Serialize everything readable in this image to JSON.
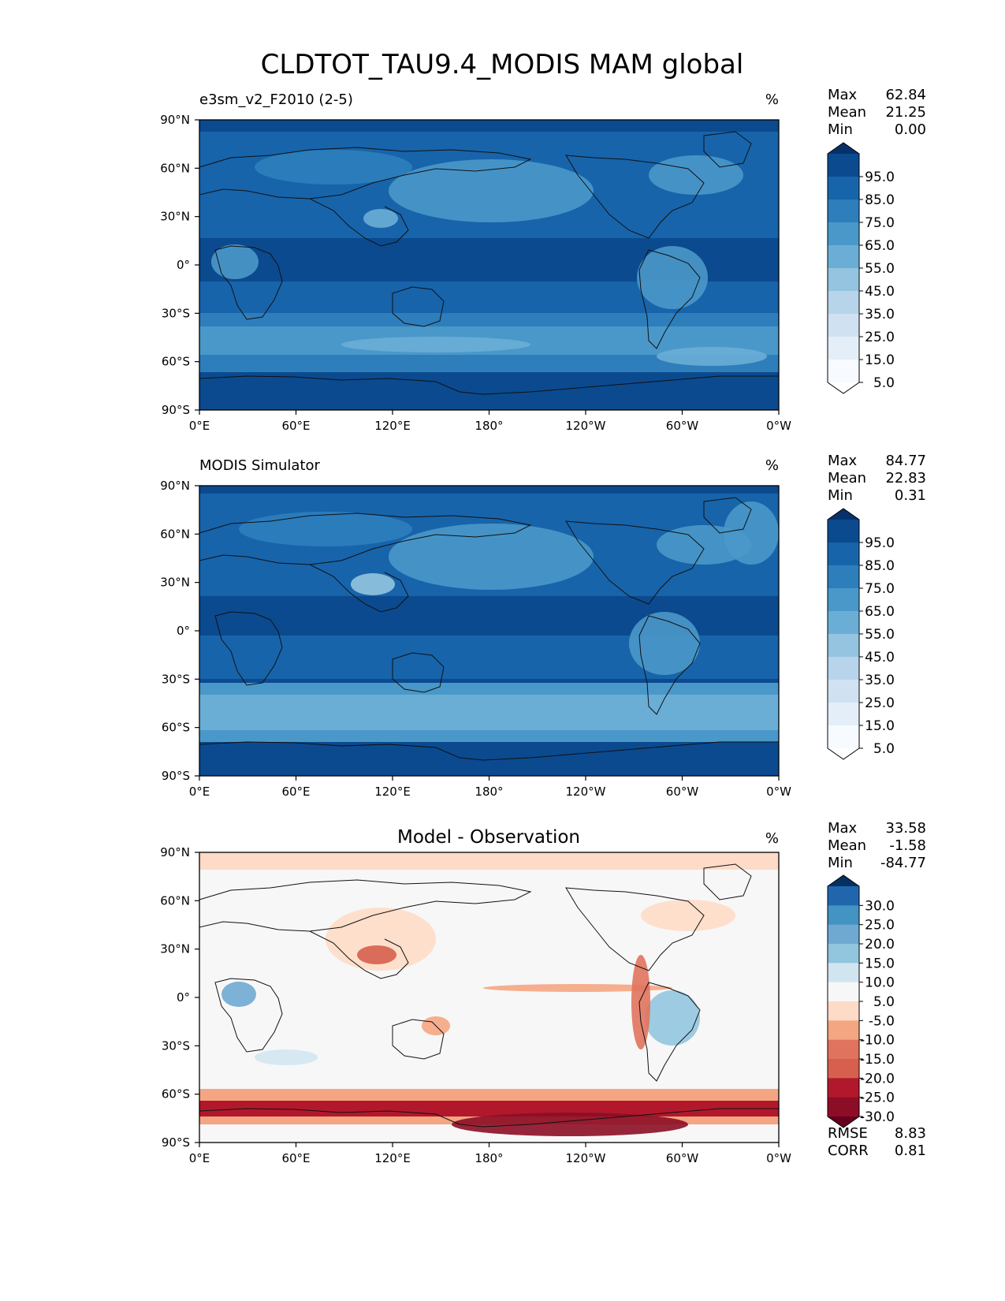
{
  "title": "CLDTOT_TAU9.4_MODIS MAM global",
  "x_ticks": [
    "0°E",
    "60°E",
    "120°E",
    "180°",
    "120°W",
    "60°W",
    "0°W"
  ],
  "y_ticks": [
    "90°N",
    "60°N",
    "30°N",
    "0°",
    "30°S",
    "60°S",
    "90°S"
  ],
  "panels": [
    {
      "name": "model",
      "left_title": "e3sm_v2_F2010 (2-5)",
      "center_title": "",
      "units": "%",
      "stats": [
        {
          "label": "Max",
          "value": "62.84"
        },
        {
          "label": "Mean",
          "value": "21.25"
        },
        {
          "label": "Min",
          "value": "0.00"
        }
      ],
      "colorbar_labels": [
        "95.0",
        "85.0",
        "75.0",
        "65.0",
        "55.0",
        "45.0",
        "35.0",
        "25.0",
        "15.0",
        "5.0"
      ],
      "colorbar_colors": [
        "#08306b",
        "#0b4a8f",
        "#1764ab",
        "#2e7ebc",
        "#4a98c9",
        "#6aaed6",
        "#94c4df",
        "#b7d4ea",
        "#d0e1f2",
        "#e3eef8",
        "#f7fbff",
        "#ffffff"
      ],
      "footer_stats": []
    },
    {
      "name": "obs",
      "left_title": "MODIS Simulator",
      "center_title": "",
      "units": "%",
      "stats": [
        {
          "label": "Max",
          "value": "84.77"
        },
        {
          "label": "Mean",
          "value": "22.83"
        },
        {
          "label": "Min",
          "value": "0.31"
        }
      ],
      "colorbar_labels": [
        "95.0",
        "85.0",
        "75.0",
        "65.0",
        "55.0",
        "45.0",
        "35.0",
        "25.0",
        "15.0",
        "5.0"
      ],
      "colorbar_colors": [
        "#08306b",
        "#0b4a8f",
        "#1764ab",
        "#2e7ebc",
        "#4a98c9",
        "#6aaed6",
        "#94c4df",
        "#b7d4ea",
        "#d0e1f2",
        "#e3eef8",
        "#f7fbff",
        "#ffffff"
      ],
      "footer_stats": []
    },
    {
      "name": "diff",
      "left_title": "",
      "center_title": "Model - Observation",
      "units": "%",
      "stats": [
        {
          "label": "Max",
          "value": "33.58"
        },
        {
          "label": "Mean",
          "value": "-1.58"
        },
        {
          "label": "Min",
          "value": "-84.77"
        }
      ],
      "colorbar_labels": [
        "30.0",
        "25.0",
        "20.0",
        "15.0",
        "10.0",
        "5.0",
        "-5.0",
        "-10.0",
        "-15.0",
        "-20.0",
        "-25.0",
        "-30.0"
      ],
      "colorbar_colors": [
        "#053061",
        "#2166ac",
        "#4393c3",
        "#6fa9d2",
        "#92c5de",
        "#d1e5f0",
        "#f7f7f7",
        "#fddbc7",
        "#f4a582",
        "#e0735d",
        "#d6604d",
        "#b2182b",
        "#8c0d25",
        "#67001f"
      ],
      "footer_stats": [
        {
          "label": "RMSE",
          "value": "8.83"
        },
        {
          "label": "CORR",
          "value": "0.81"
        }
      ]
    }
  ]
}
